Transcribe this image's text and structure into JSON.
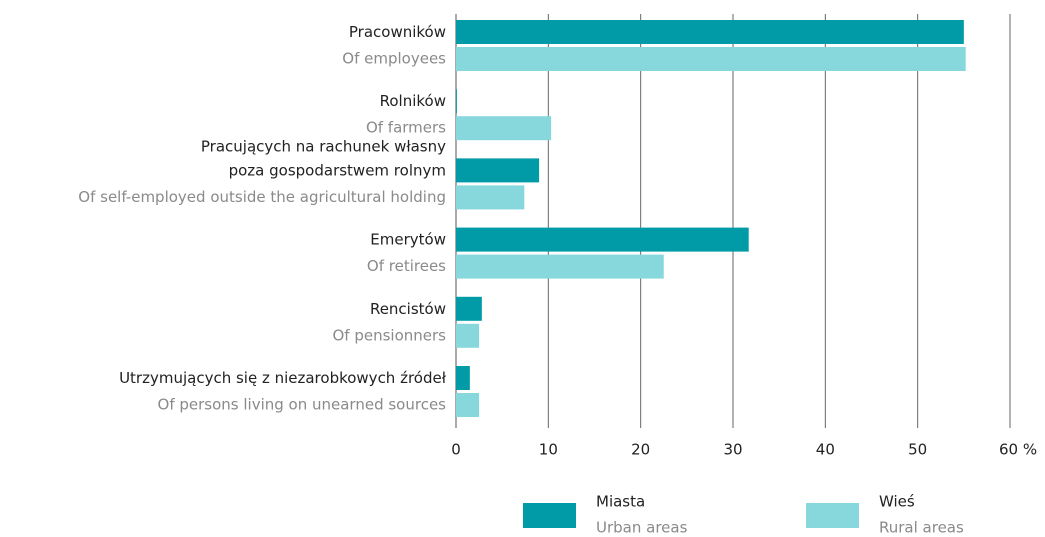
{
  "chart_data": {
    "type": "bar",
    "orientation": "horizontal",
    "categories": [
      "Pracowników",
      "Rolników",
      "Pracujących na rachunek własny\npoza gospodarstwem rolnym",
      "Emerytów",
      "Rencistów",
      "Utrzymujących się z niezarobkowych źródeł"
    ],
    "categories_en": [
      "Of employees",
      "Of farmers",
      "Of self-employed outside the agricultural holding",
      "Of retirees",
      "Of pensionners",
      "Of persons living on unearned sources"
    ],
    "series": [
      {
        "name": "Miasta",
        "name_en": "Urban areas",
        "color": "#009ba6",
        "values": [
          55.0,
          0.1,
          9.0,
          31.7,
          2.8,
          1.5
        ]
      },
      {
        "name": "Wieś",
        "name_en": "Rural areas",
        "color": "#86d8dc",
        "values": [
          55.2,
          10.3,
          7.4,
          22.5,
          2.5,
          2.5
        ]
      }
    ],
    "xlim": [
      0,
      60
    ],
    "xticks": [
      0,
      10,
      20,
      30,
      40,
      50,
      {
        "value": 60,
        "label": "60 %"
      }
    ],
    "grid": true
  }
}
